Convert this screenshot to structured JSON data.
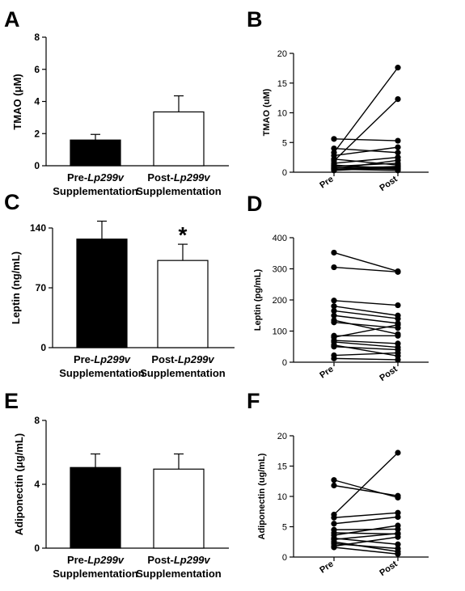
{
  "panel_letters": [
    "A",
    "B",
    "C",
    "D",
    "E",
    "F"
  ],
  "chart_data": [
    {
      "panel": "A",
      "type": "bar",
      "ylabel": "TMAO (μM)",
      "ylim": [
        0,
        8
      ],
      "yticks": [
        0,
        2,
        4,
        6,
        8
      ],
      "categories": [
        {
          "prefix": "Pre-",
          "italic": "Lp299v",
          "line2": "Supplementation"
        },
        {
          "prefix": "Post-",
          "italic": "Lp299v",
          "line2": "Supplementation"
        }
      ],
      "values": [
        1.6,
        3.35
      ],
      "errors": [
        0.35,
        1.0
      ],
      "fills": [
        "#000000",
        "#ffffff"
      ],
      "significance": [
        "",
        ""
      ]
    },
    {
      "panel": "B",
      "type": "line",
      "ylabel": "TMAO (uM)",
      "ylim": [
        0,
        20
      ],
      "yticks": [
        0,
        5,
        10,
        15,
        20
      ],
      "x": [
        "Pre",
        "Post"
      ],
      "pairs": [
        [
          5.6,
          5.3
        ],
        [
          4.0,
          3.3
        ],
        [
          3.3,
          17.6
        ],
        [
          2.8,
          4.2
        ],
        [
          2.2,
          1.2
        ],
        [
          1.9,
          12.3
        ],
        [
          1.5,
          2.5
        ],
        [
          1.2,
          0.6
        ],
        [
          1.0,
          1.5
        ],
        [
          0.8,
          0.9
        ],
        [
          0.7,
          0.5
        ],
        [
          0.6,
          2.0
        ],
        [
          0.5,
          0.3
        ],
        [
          0.4,
          1.0
        ],
        [
          0.3,
          0.8
        ]
      ]
    },
    {
      "panel": "C",
      "type": "bar",
      "ylabel": "Leptin (ng/mL)",
      "ylim": [
        0,
        140
      ],
      "yticks": [
        0,
        70,
        140
      ],
      "categories": [
        {
          "prefix": "Pre-",
          "italic": "Lp299v",
          "line2": "Supplementation"
        },
        {
          "prefix": "Post-",
          "italic": "Lp299v",
          "line2": "Supplementation"
        }
      ],
      "values": [
        127,
        102
      ],
      "errors": [
        21,
        19
      ],
      "fills": [
        "#000000",
        "#ffffff"
      ],
      "significance": [
        "",
        "*"
      ]
    },
    {
      "panel": "D",
      "type": "line",
      "ylabel": "Leptin (pg/mL)",
      "ylim": [
        0,
        400
      ],
      "yticks": [
        0,
        100,
        200,
        300,
        400
      ],
      "x": [
        "Pre",
        "Post"
      ],
      "pairs": [
        [
          352,
          292
        ],
        [
          305,
          290
        ],
        [
          198,
          183
        ],
        [
          180,
          150
        ],
        [
          165,
          140
        ],
        [
          150,
          125
        ],
        [
          135,
          90
        ],
        [
          128,
          110
        ],
        [
          85,
          85
        ],
        [
          80,
          120
        ],
        [
          70,
          60
        ],
        [
          65,
          48
        ],
        [
          55,
          20
        ],
        [
          50,
          40
        ],
        [
          22,
          30
        ],
        [
          12,
          8
        ]
      ]
    },
    {
      "panel": "E",
      "type": "bar",
      "ylabel": "Adiponectin (μg/mL)",
      "ylim": [
        0,
        8
      ],
      "yticks": [
        0,
        4,
        8
      ],
      "categories": [
        {
          "prefix": "Pre-",
          "italic": "Lp299v",
          "line2": "Supplementation"
        },
        {
          "prefix": "Post-",
          "italic": "Lp299v",
          "line2": "Supplementation"
        }
      ],
      "values": [
        5.05,
        4.95
      ],
      "errors": [
        0.85,
        0.95
      ],
      "fills": [
        "#000000",
        "#ffffff"
      ],
      "significance": [
        "",
        ""
      ]
    },
    {
      "panel": "F",
      "type": "line",
      "ylabel": "Adiponectin (ug/mL)",
      "ylim": [
        0,
        20
      ],
      "yticks": [
        0,
        5,
        10,
        15,
        20
      ],
      "x": [
        "Pre",
        "Post"
      ],
      "pairs": [
        [
          12.7,
          9.8
        ],
        [
          11.8,
          10.1
        ],
        [
          7.0,
          17.2
        ],
        [
          6.5,
          7.3
        ],
        [
          5.5,
          6.6
        ],
        [
          4.5,
          4.6
        ],
        [
          4.0,
          3.8
        ],
        [
          3.6,
          5.2
        ],
        [
          3.1,
          2.1
        ],
        [
          2.9,
          3.9
        ],
        [
          2.5,
          0.9
        ],
        [
          2.2,
          1.4
        ],
        [
          1.8,
          3.3
        ],
        [
          1.6,
          0.5
        ]
      ]
    }
  ]
}
